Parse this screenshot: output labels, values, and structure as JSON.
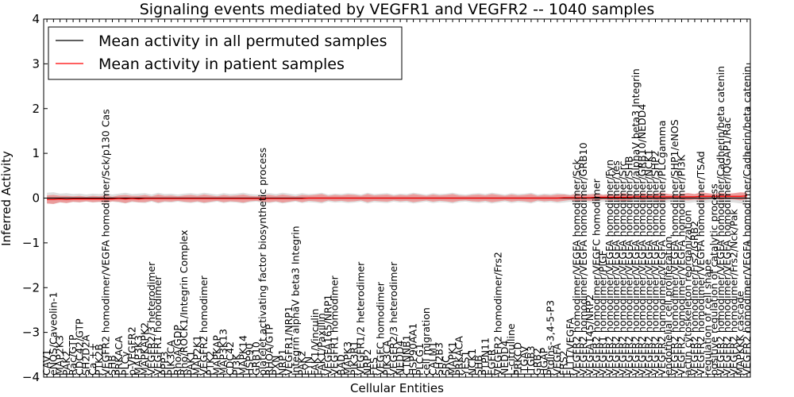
{
  "chart_data": {
    "type": "line",
    "title": "Signaling events mediated by VEGFR1 and VEGFR2 -- 1040 samples",
    "xlabel": "Cellular Entities",
    "ylabel": "Inferred Activity",
    "ylim": [
      -4,
      4
    ],
    "yticks": [
      "−4",
      "−3",
      "−2",
      "−1",
      "0",
      "1",
      "2",
      "3",
      "4"
    ],
    "legend_position": "top-left",
    "categories": [
      "CAV1",
      "eNOS/Caveolin-1",
      "MAP2K3",
      "PAK2",
      "Rac/GTP",
      "CDC42/GTP",
      "SH2D2A",
      "Ca ++",
      "PTK2B",
      "VEGFR2 homodimer/VEGFA homodimer/Sck/p130 Cas",
      "SHB",
      "PRKACA",
      "PLCγ",
      "p-VEGFR2",
      "MAP3K3",
      "MAPKAPK2",
      "VEGFR2/3 heterodimer",
      "VEGFR1 homodimer",
      "PPP3",
      "PIK3CA",
      "RhoA/GDP",
      "Rho/ROCK1/Integrin Complex",
      "PAK1",
      "MAP2K1",
      "VEGFR2 homodimer",
      "PTK2",
      "MAPKAP",
      "MAP3K13",
      "CDC42",
      "PI3K",
      "MAPK14",
      "HSP90",
      "GRB10",
      "platelet activating factor biosynthetic process",
      "RHOA/GTP",
      "PXN",
      "NRP1",
      "VEGFR1/NRP1",
      "Integrin alphaV beta3 Integrin",
      "PAK2",
      "FYN",
      "FAK1/Vinculin",
      "FAK1/Paxillin",
      "VEGFA165/NRP1",
      "VEGFR1 homodimer",
      "BAD",
      "MAPK3",
      "PIK3R1",
      "VEGFR1/2 heterodimer",
      "NRP2",
      "FES",
      "VEGFC homodimer",
      "PIK3CA",
      "VEGFR2/3 heterodimer",
      "NEDD4",
      "CTNNB1",
      "HSP90AA1",
      "PLCG1",
      "cell migration",
      "CALM1",
      "SH2B3",
      "SRC",
      "MAPK1",
      "PRKACA",
      "YES1",
      "NCK1",
      "SHB",
      "PTPN11",
      "EGFR",
      "VEGFR2 homodimer/Frs2",
      "NEDD4",
      "L-citrulline",
      "PRKCD",
      "ITGAV",
      "ITGB3",
      "GRB2",
      "HGAP",
      "Ptdlns-3,4-5-P3",
      "VEGFA",
      "FRS2",
      "FLT1/VEGFA",
      "VEGFR2 homodimer/VEGFA homodimer/Sck",
      "VEGFR2 homodimer/VEGFA homodimer/GRB10",
      "VEGFA145/NRP2",
      "VEGFR2 homodimer/VEGFC homodimer",
      "VEGFR1 homodimer/PlGF",
      "VEGFR2 homodimer/VEGFA homodimer/Fyn",
      "VEGFR2 homodimer/VEGFA homodimer/Yes",
      "VEGFR2 homodimer/VEGFA homodimer/Src",
      "VEGFR2 homodimer/VEGFA homodimer/SHB",
      "VEGFR2 homodimer/VEGFA homodimer/alphaV beta3 Integrin",
      "VEGFR2 homodimer/VEGFA homodimer/GRB10/NEDD4",
      "VEGFR2 homodimer/VEGFA homodimer/NCK1",
      "VEGFR2 homodimer/VEGFA homodimer/SHP2",
      "VEGFR2 homodimer/VEGFA homodimer/PLCgamma",
      "endothelial cell proliferation",
      "VEGFR2 homodimer/VEGFA homodimer/SHP1/eNOS",
      "VEGFR2 homodimer/VEGFA homodimer/PI3K",
      "actin cytoskeleton reorganization",
      "VEGFR2 homodimer/Frs2/GRB2",
      "VEGFR2 homodimer/VEGFA homodimer/TSAd",
      "regulation of cell shape",
      "positive regulation of catalytic process",
      "VEGFR2 homodimer/VEGFA homodimer/Cadherin/beta catenin",
      "VEGFR2 homodimer/VEGFA homodimer/IQGAP1/Rac",
      "VEGFR2 homodimer/Frs2/Nck/Pak",
      "MAPKKK cascade",
      "VEGFR2 homodimer/VEGFA homodimer/Cadherin/beta catenin"
    ],
    "series": [
      {
        "name": "Mean activity in all permuted samples",
        "color": "#000000",
        "values": [
          0.0,
          0.0,
          0.0,
          0.0,
          0.0,
          0.0,
          0.0,
          0.0,
          0.0,
          0.0,
          0.0,
          0.0,
          0.0,
          0.0,
          0.0,
          0.0,
          0.0,
          0.0,
          0.0,
          0.0,
          0.0,
          0.0,
          0.0,
          0.0,
          0.0,
          0.0,
          0.0,
          0.0,
          0.0,
          0.0,
          0.0,
          0.0,
          0.0,
          0.0,
          0.0,
          0.0,
          0.0,
          0.0,
          0.0,
          0.0,
          0.0,
          0.0,
          0.0,
          0.0,
          0.0,
          0.0,
          0.0,
          0.0,
          0.0,
          0.0,
          0.0,
          0.0,
          0.0,
          0.0,
          0.0,
          0.0,
          0.0,
          0.0,
          0.0,
          0.0,
          0.0,
          0.0,
          0.0,
          0.0,
          0.0,
          0.0,
          0.0,
          0.0,
          0.0,
          0.0,
          0.0,
          0.0,
          0.0,
          0.0,
          0.0,
          0.0,
          0.0,
          0.0,
          0.0,
          0.0,
          0.0,
          0.0,
          0.0,
          0.0,
          0.0,
          0.0,
          0.0,
          0.0,
          0.0,
          0.0,
          0.0,
          0.0,
          0.0,
          0.0,
          0.0,
          0.0,
          0.0,
          0.0,
          0.0,
          0.0,
          0.0,
          0.0,
          0.0,
          0.0,
          0.0,
          0.0,
          0.0,
          0.0
        ]
      },
      {
        "name": "Mean activity in patient samples",
        "color": "#ff0000",
        "values": [
          -0.03,
          -0.03,
          -0.02,
          -0.03,
          -0.02,
          -0.02,
          -0.02,
          -0.02,
          -0.02,
          -0.02,
          -0.02,
          -0.01,
          -0.02,
          -0.01,
          -0.02,
          -0.01,
          -0.01,
          -0.01,
          -0.01,
          -0.01,
          -0.01,
          -0.01,
          -0.01,
          -0.01,
          -0.01,
          -0.01,
          -0.01,
          -0.01,
          -0.01,
          -0.01,
          -0.01,
          -0.01,
          -0.01,
          -0.01,
          -0.01,
          -0.01,
          -0.01,
          -0.01,
          -0.01,
          -0.01,
          0.0,
          0.0,
          0.0,
          0.0,
          0.0,
          0.0,
          0.0,
          0.0,
          0.0,
          0.0,
          0.0,
          0.0,
          0.0,
          0.0,
          0.0,
          0.0,
          0.0,
          0.0,
          0.0,
          0.0,
          0.0,
          0.0,
          0.0,
          0.0,
          0.0,
          0.0,
          0.0,
          0.0,
          0.0,
          0.0,
          0.0,
          0.0,
          0.0,
          0.0,
          0.0,
          0.0,
          0.0,
          0.0,
          0.0,
          0.01,
          0.01,
          0.01,
          0.01,
          0.01,
          0.02,
          0.02,
          0.02,
          0.02,
          0.02,
          0.02,
          0.03,
          0.03,
          0.03,
          0.03,
          0.03,
          0.03,
          0.03,
          0.03,
          0.03,
          0.03,
          0.04,
          0.04,
          0.04,
          0.04,
          0.04,
          0.04,
          0.04,
          0.05
        ]
      }
    ],
    "bands": {
      "permuted_halfwidth": [
        0.12,
        0.13,
        0.1,
        0.11,
        0.09,
        0.1,
        0.08,
        0.1,
        0.09,
        0.11,
        0.08,
        0.1,
        0.12,
        0.09,
        0.1,
        0.11,
        0.08,
        0.12,
        0.09,
        0.1,
        0.08,
        0.1,
        0.11,
        0.09,
        0.12,
        0.1,
        0.08,
        0.11,
        0.09,
        0.1,
        0.12,
        0.09,
        0.08,
        0.1,
        0.11,
        0.09,
        0.12,
        0.1,
        0.08,
        0.11,
        0.09,
        0.1,
        0.12,
        0.08,
        0.1,
        0.09,
        0.11,
        0.1,
        0.08,
        0.12,
        0.09,
        0.1,
        0.11,
        0.08,
        0.1,
        0.09,
        0.12,
        0.1,
        0.08,
        0.11,
        0.09,
        0.1,
        0.12,
        0.09,
        0.08,
        0.1,
        0.11,
        0.09,
        0.12,
        0.1,
        0.08,
        0.11,
        0.09,
        0.1,
        0.12,
        0.08,
        0.1,
        0.09,
        0.11,
        0.1,
        0.08,
        0.12,
        0.09,
        0.1,
        0.11,
        0.08,
        0.1,
        0.09,
        0.12,
        0.1,
        0.08,
        0.11,
        0.09,
        0.1,
        0.12,
        0.09,
        0.08,
        0.1,
        0.11,
        0.09,
        0.12,
        0.1,
        0.08,
        0.11,
        0.09,
        0.1,
        0.12,
        0.1
      ],
      "patient_halfwidth": [
        0.09,
        0.1,
        0.07,
        0.08,
        0.06,
        0.07,
        0.05,
        0.07,
        0.06,
        0.08,
        0.05,
        0.07,
        0.09,
        0.06,
        0.07,
        0.08,
        0.05,
        0.09,
        0.06,
        0.07,
        0.05,
        0.07,
        0.08,
        0.06,
        0.09,
        0.07,
        0.05,
        0.08,
        0.06,
        0.07,
        0.09,
        0.06,
        0.05,
        0.07,
        0.08,
        0.06,
        0.09,
        0.07,
        0.05,
        0.08,
        0.06,
        0.07,
        0.09,
        0.05,
        0.07,
        0.06,
        0.08,
        0.07,
        0.05,
        0.09,
        0.06,
        0.07,
        0.08,
        0.05,
        0.07,
        0.06,
        0.09,
        0.07,
        0.05,
        0.08,
        0.06,
        0.07,
        0.09,
        0.06,
        0.05,
        0.07,
        0.08,
        0.06,
        0.09,
        0.07,
        0.05,
        0.08,
        0.06,
        0.07,
        0.09,
        0.05,
        0.07,
        0.06,
        0.08,
        0.07,
        0.05,
        0.09,
        0.06,
        0.07,
        0.08,
        0.05,
        0.07,
        0.06,
        0.09,
        0.07,
        0.05,
        0.08,
        0.06,
        0.07,
        0.09,
        0.06,
        0.05,
        0.07,
        0.08,
        0.06,
        0.09,
        0.07,
        0.05,
        0.08,
        0.06,
        0.07,
        0.09,
        0.07
      ],
      "permuted_color": "#d3d3d3",
      "patient_color": "#f08080"
    }
  }
}
